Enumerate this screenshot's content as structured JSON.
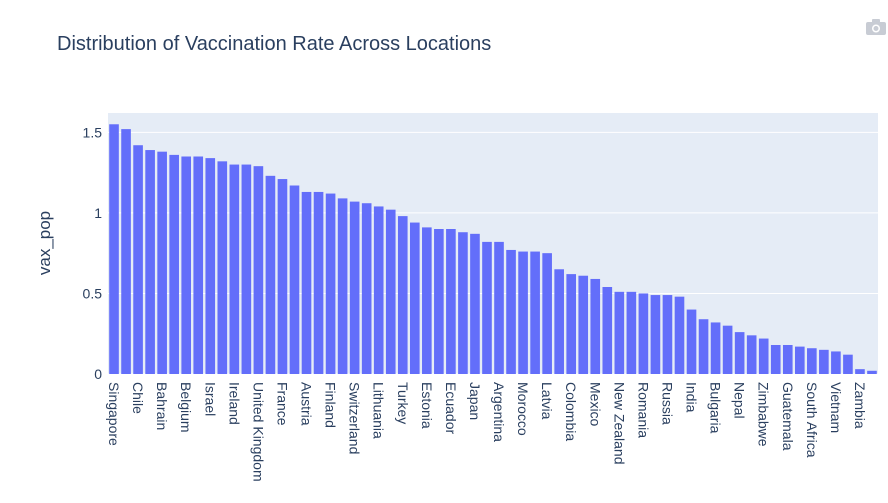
{
  "chart_data": {
    "type": "bar",
    "title": "Distribution of Vaccination Rate Across Locations",
    "y_label": "vax_pop",
    "categories": [
      "Singapore",
      null,
      "Chile",
      null,
      "Bahrain",
      null,
      "Belgium",
      null,
      "Israel",
      null,
      "Ireland",
      null,
      "United Kingdom",
      null,
      "France",
      null,
      "Austria",
      null,
      "Finland",
      null,
      "Switzerland",
      null,
      "Lithuania",
      null,
      "Turkey",
      null,
      "Estonia",
      null,
      "Ecuador",
      null,
      "Japan",
      null,
      "Argentina",
      null,
      "Morocco",
      null,
      "Latvia",
      null,
      "Colombia",
      null,
      "Mexico",
      null,
      "New Zealand",
      null,
      "Romania",
      null,
      "Russia",
      null,
      "India",
      null,
      "Bulgaria",
      null,
      "Nepal",
      null,
      "Zimbabwe",
      null,
      "Guatemala",
      null,
      "South Africa",
      null,
      "Vietnam",
      null,
      "Zambia",
      null
    ],
    "values": [
      1.55,
      1.52,
      1.42,
      1.39,
      1.38,
      1.36,
      1.35,
      1.35,
      1.34,
      1.32,
      1.3,
      1.3,
      1.29,
      1.23,
      1.21,
      1.17,
      1.13,
      1.13,
      1.12,
      1.09,
      1.07,
      1.06,
      1.04,
      1.02,
      0.98,
      0.94,
      0.91,
      0.9,
      0.9,
      0.88,
      0.87,
      0.82,
      0.82,
      0.77,
      0.76,
      0.76,
      0.75,
      0.65,
      0.62,
      0.61,
      0.59,
      0.54,
      0.51,
      0.51,
      0.5,
      0.49,
      0.49,
      0.48,
      0.4,
      0.34,
      0.32,
      0.3,
      0.26,
      0.24,
      0.22,
      0.18,
      0.18,
      0.17,
      0.16,
      0.15,
      0.14,
      0.12,
      0.03,
      0.02
    ],
    "color": "#636efa",
    "ylim": [
      0,
      1.62
    ],
    "yticks": [
      0,
      0.5,
      1,
      1.5
    ],
    "grid": true
  }
}
